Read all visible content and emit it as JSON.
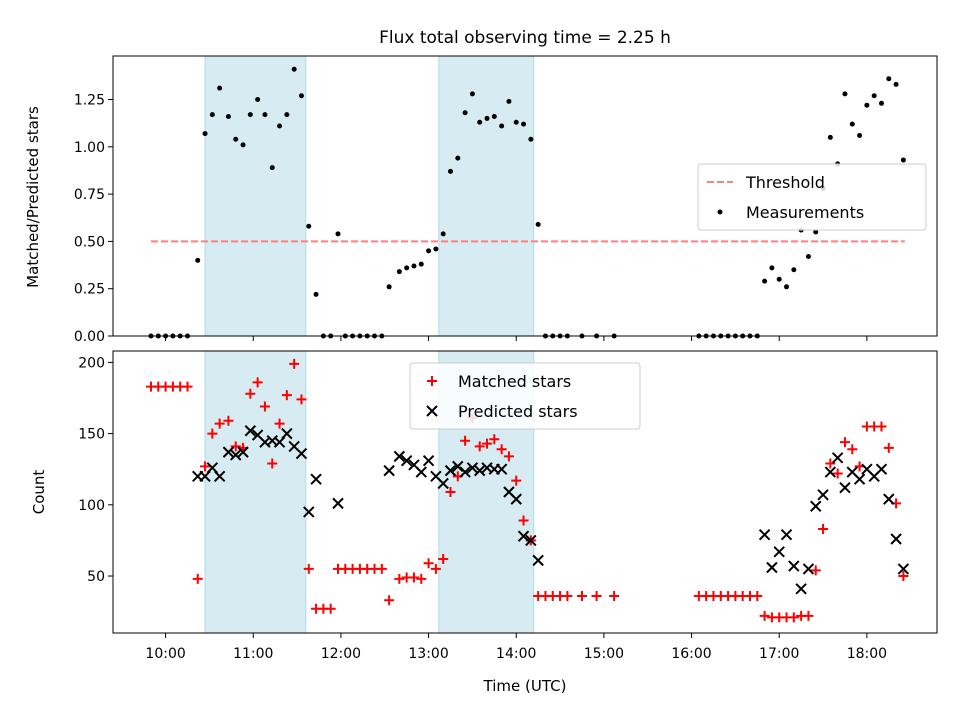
{
  "chart_data": [
    {
      "type": "scatter",
      "title": "Flux total observing time = 2.25 h",
      "ylabel": "Matched/Predicted stars",
      "xlabel": "",
      "ylim": [
        0,
        1.48
      ],
      "yticks": [
        0.0,
        0.25,
        0.5,
        0.75,
        1.0,
        1.25
      ],
      "ytick_labels": [
        "0.00",
        "0.25",
        "0.50",
        "0.75",
        "1.00",
        "1.25"
      ],
      "legend_position": "center-right",
      "legend": [
        "Threshold",
        "Measurements"
      ],
      "shaded_intervals": [
        [
          "10:27",
          "11:36"
        ],
        [
          "13:07",
          "14:12"
        ]
      ],
      "threshold": {
        "name": "Threshold",
        "value": 0.5,
        "x_start": "9:50",
        "x_end": "18:26",
        "color": "#ff7f7f"
      },
      "series": [
        {
          "name": "Measurements",
          "color": "#000000",
          "points": [
            [
              "9:50",
              0
            ],
            [
              "9:55",
              0
            ],
            [
              "10:00",
              0
            ],
            [
              "10:05",
              0
            ],
            [
              "10:10",
              0
            ],
            [
              "10:15",
              0
            ],
            [
              "10:22",
              0.4
            ],
            [
              "10:27",
              1.07
            ],
            [
              "10:32",
              1.17
            ],
            [
              "10:37",
              1.31
            ],
            [
              "10:43",
              1.16
            ],
            [
              "10:48",
              1.04
            ],
            [
              "10:53",
              1.01
            ],
            [
              "10:58",
              1.17
            ],
            [
              "11:03",
              1.25
            ],
            [
              "11:08",
              1.17
            ],
            [
              "11:13",
              0.89
            ],
            [
              "11:18",
              1.11
            ],
            [
              "11:23",
              1.17
            ],
            [
              "11:28",
              1.41
            ],
            [
              "11:33",
              1.27
            ],
            [
              "11:38",
              0.58
            ],
            [
              "11:43",
              0.22
            ],
            [
              "11:48",
              0
            ],
            [
              "11:53",
              0
            ],
            [
              "11:58",
              0.54
            ],
            [
              "12:03",
              0
            ],
            [
              "12:08",
              0
            ],
            [
              "12:13",
              0
            ],
            [
              "12:18",
              0
            ],
            [
              "12:23",
              0
            ],
            [
              "12:28",
              0
            ],
            [
              "12:33",
              0.26
            ],
            [
              "12:40",
              0.34
            ],
            [
              "12:45",
              0.36
            ],
            [
              "12:50",
              0.37
            ],
            [
              "12:55",
              0.38
            ],
            [
              "13:00",
              0.45
            ],
            [
              "13:05",
              0.46
            ],
            [
              "13:10",
              0.54
            ],
            [
              "13:15",
              0.87
            ],
            [
              "13:20",
              0.94
            ],
            [
              "13:25",
              1.18
            ],
            [
              "13:30",
              1.28
            ],
            [
              "13:35",
              1.13
            ],
            [
              "13:40",
              1.15
            ],
            [
              "13:45",
              1.16
            ],
            [
              "13:50",
              1.11
            ],
            [
              "13:55",
              1.24
            ],
            [
              "14:00",
              1.13
            ],
            [
              "14:05",
              1.12
            ],
            [
              "14:10",
              1.04
            ],
            [
              "14:15",
              0.59
            ],
            [
              "14:20",
              0
            ],
            [
              "14:25",
              0
            ],
            [
              "14:30",
              0
            ],
            [
              "14:35",
              0
            ],
            [
              "14:45",
              0
            ],
            [
              "14:55",
              0
            ],
            [
              "15:07",
              0
            ],
            [
              "16:05",
              0
            ],
            [
              "16:10",
              0
            ],
            [
              "16:15",
              0
            ],
            [
              "16:20",
              0
            ],
            [
              "16:25",
              0
            ],
            [
              "16:30",
              0
            ],
            [
              "16:35",
              0
            ],
            [
              "16:40",
              0
            ],
            [
              "16:45",
              0
            ],
            [
              "16:50",
              0.29
            ],
            [
              "16:55",
              0.36
            ],
            [
              "17:00",
              0.3
            ],
            [
              "17:05",
              0.26
            ],
            [
              "17:10",
              0.35
            ],
            [
              "17:15",
              0.56
            ],
            [
              "17:20",
              0.42
            ],
            [
              "17:25",
              0.55
            ],
            [
              "17:30",
              0.78
            ],
            [
              "17:35",
              1.05
            ],
            [
              "17:40",
              0.91
            ],
            [
              "17:45",
              1.28
            ],
            [
              "17:50",
              1.12
            ],
            [
              "17:55",
              1.06
            ],
            [
              "18:00",
              1.22
            ],
            [
              "18:05",
              1.27
            ],
            [
              "18:10",
              1.23
            ],
            [
              "18:15",
              1.36
            ],
            [
              "18:20",
              1.33
            ],
            [
              "18:25",
              0.93
            ]
          ]
        }
      ]
    },
    {
      "type": "scatter",
      "title": "",
      "ylabel": "Count",
      "xlabel": "Time (UTC)",
      "xlim": [
        "9:24",
        "18:48"
      ],
      "ylim": [
        10,
        208
      ],
      "yticks": [
        50,
        100,
        150,
        200
      ],
      "xticks": [
        "10:00",
        "11:00",
        "12:00",
        "13:00",
        "14:00",
        "15:00",
        "16:00",
        "17:00",
        "18:00"
      ],
      "legend_position": "top-center",
      "legend": [
        "Matched stars",
        "Predicted stars"
      ],
      "shaded_intervals": [
        [
          "10:27",
          "11:36"
        ],
        [
          "13:07",
          "14:12"
        ]
      ],
      "series": [
        {
          "name": "Matched stars",
          "color": "#ff0000",
          "marker": "+",
          "points": [
            [
              "9:50",
              183
            ],
            [
              "9:55",
              183
            ],
            [
              "10:00",
              183
            ],
            [
              "10:05",
              183
            ],
            [
              "10:10",
              183
            ],
            [
              "10:15",
              183
            ],
            [
              "10:22",
              48
            ],
            [
              "10:27",
              127
            ],
            [
              "10:32",
              150
            ],
            [
              "10:37",
              157
            ],
            [
              "10:43",
              159
            ],
            [
              "10:48",
              141
            ],
            [
              "10:53",
              140
            ],
            [
              "10:58",
              178
            ],
            [
              "11:03",
              186
            ],
            [
              "11:08",
              169
            ],
            [
              "11:13",
              129
            ],
            [
              "11:18",
              157
            ],
            [
              "11:23",
              177
            ],
            [
              "11:28",
              199
            ],
            [
              "11:33",
              174
            ],
            [
              "11:38",
              55
            ],
            [
              "11:43",
              27
            ],
            [
              "11:48",
              27
            ],
            [
              "11:53",
              27
            ],
            [
              "11:58",
              55
            ],
            [
              "12:03",
              55
            ],
            [
              "12:08",
              55
            ],
            [
              "12:13",
              55
            ],
            [
              "12:18",
              55
            ],
            [
              "12:23",
              55
            ],
            [
              "12:28",
              55
            ],
            [
              "12:33",
              33
            ],
            [
              "12:40",
              48
            ],
            [
              "12:45",
              49
            ],
            [
              "12:50",
              49
            ],
            [
              "12:55",
              48
            ],
            [
              "13:00",
              59
            ],
            [
              "13:05",
              55
            ],
            [
              "13:10",
              62
            ],
            [
              "13:15",
              109
            ],
            [
              "13:20",
              120
            ],
            [
              "13:25",
              145
            ],
            [
              "13:30",
              161
            ],
            [
              "13:35",
              141
            ],
            [
              "13:40",
              143
            ],
            [
              "13:45",
              146
            ],
            [
              "13:50",
              139
            ],
            [
              "13:55",
              134
            ],
            [
              "14:00",
              117
            ],
            [
              "14:05",
              89
            ],
            [
              "14:10",
              75
            ],
            [
              "14:15",
              36
            ],
            [
              "14:20",
              36
            ],
            [
              "14:25",
              36
            ],
            [
              "14:30",
              36
            ],
            [
              "14:35",
              36
            ],
            [
              "14:45",
              36
            ],
            [
              "14:55",
              36
            ],
            [
              "15:07",
              36
            ],
            [
              "16:05",
              36
            ],
            [
              "16:10",
              36
            ],
            [
              "16:15",
              36
            ],
            [
              "16:20",
              36
            ],
            [
              "16:25",
              36
            ],
            [
              "16:30",
              36
            ],
            [
              "16:35",
              36
            ],
            [
              "16:40",
              36
            ],
            [
              "16:45",
              36
            ],
            [
              "16:50",
              22
            ],
            [
              "16:55",
              21
            ],
            [
              "17:00",
              21
            ],
            [
              "17:05",
              21
            ],
            [
              "17:10",
              21
            ],
            [
              "17:15",
              22
            ],
            [
              "17:20",
              22
            ],
            [
              "17:25",
              54
            ],
            [
              "17:30",
              83
            ],
            [
              "17:35",
              129
            ],
            [
              "17:40",
              122
            ],
            [
              "17:45",
              144
            ],
            [
              "17:50",
              139
            ],
            [
              "17:55",
              127
            ],
            [
              "18:00",
              155
            ],
            [
              "18:05",
              155
            ],
            [
              "18:10",
              155
            ],
            [
              "18:15",
              140
            ],
            [
              "18:20",
              101
            ],
            [
              "18:25",
              50
            ]
          ]
        },
        {
          "name": "Predicted stars",
          "color": "#000000",
          "marker": "x",
          "points": [
            [
              "10:22",
              120
            ],
            [
              "10:27",
              120
            ],
            [
              "10:32",
              126
            ],
            [
              "10:37",
              120
            ],
            [
              "10:43",
              137
            ],
            [
              "10:48",
              135
            ],
            [
              "10:53",
              137
            ],
            [
              "10:58",
              152
            ],
            [
              "11:03",
              149
            ],
            [
              "11:08",
              144
            ],
            [
              "11:13",
              145
            ],
            [
              "11:18",
              144
            ],
            [
              "11:23",
              150
            ],
            [
              "11:28",
              141
            ],
            [
              "11:33",
              136
            ],
            [
              "11:38",
              95
            ],
            [
              "11:43",
              118
            ],
            [
              "11:58",
              101
            ],
            [
              "12:33",
              124
            ],
            [
              "12:40",
              134
            ],
            [
              "12:45",
              131
            ],
            [
              "12:50",
              128
            ],
            [
              "12:55",
              123
            ],
            [
              "13:00",
              131
            ],
            [
              "13:05",
              120
            ],
            [
              "13:10",
              115
            ],
            [
              "13:15",
              124
            ],
            [
              "13:20",
              127
            ],
            [
              "13:25",
              123
            ],
            [
              "13:30",
              126
            ],
            [
              "13:35",
              124
            ],
            [
              "13:40",
              126
            ],
            [
              "13:45",
              125
            ],
            [
              "13:50",
              125
            ],
            [
              "13:55",
              109
            ],
            [
              "14:00",
              104
            ],
            [
              "14:05",
              78
            ],
            [
              "14:10",
              75
            ],
            [
              "14:15",
              61
            ],
            [
              "16:50",
              79
            ],
            [
              "16:55",
              56
            ],
            [
              "17:00",
              67
            ],
            [
              "17:05",
              79
            ],
            [
              "17:10",
              57
            ],
            [
              "17:15",
              41
            ],
            [
              "17:20",
              55
            ],
            [
              "17:25",
              99
            ],
            [
              "17:30",
              107
            ],
            [
              "17:35",
              123
            ],
            [
              "17:40",
              133
            ],
            [
              "17:45",
              112
            ],
            [
              "17:50",
              123
            ],
            [
              "17:55",
              118
            ],
            [
              "18:00",
              125
            ],
            [
              "18:05",
              120
            ],
            [
              "18:10",
              125
            ],
            [
              "18:15",
              104
            ],
            [
              "18:20",
              76
            ],
            [
              "18:25",
              55
            ]
          ]
        }
      ]
    }
  ]
}
